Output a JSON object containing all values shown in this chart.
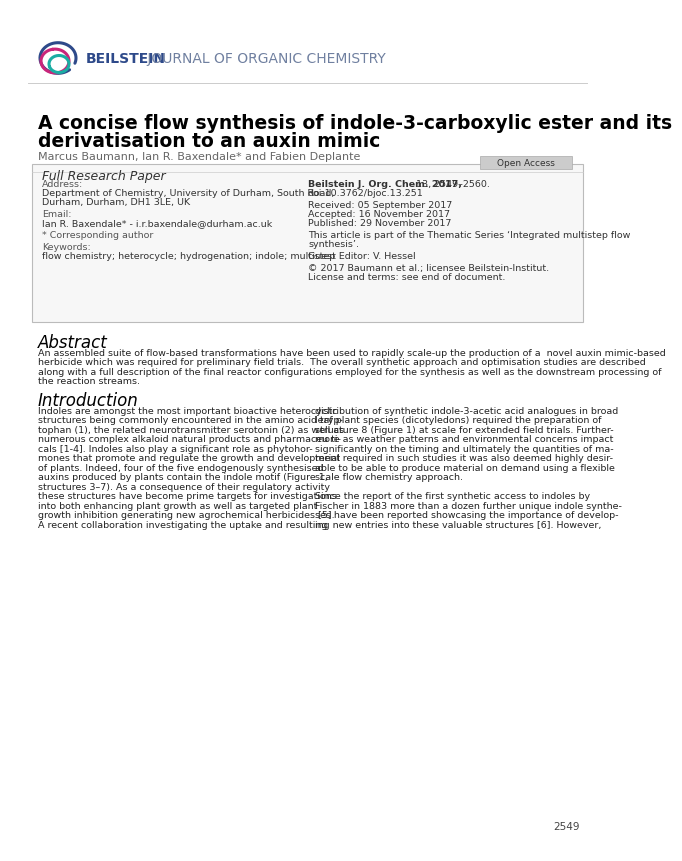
{
  "page_bg": "#ffffff",
  "logo_text_bold": "BEILSTEIN",
  "logo_text_rest": " JOURNAL OF ORGANIC CHEMISTRY",
  "title_line1": "A concise flow synthesis of indole-3-carboxylic ester and its",
  "title_line2": "derivatisation to an auxin mimic",
  "authors": "Marcus Baumann, Ian R. Baxendale* and Fabien Deplante",
  "box_label": "Full Research Paper",
  "open_access": "Open Access",
  "address_label": "Address:",
  "address_line1": "Department of Chemistry, University of Durham, South Road,",
  "address_line2": "Durham, Durham, DH1 3LE, UK",
  "email_label": "Email:",
  "email_line": "Ian R. Baxendale* - i.r.baxendale@durham.ac.uk",
  "corr_author": "* Corresponding author",
  "keywords_label": "Keywords:",
  "keywords_line": "flow chemistry; heterocycle; hydrogenation; indole; multistep",
  "journal_ref_bold": "Beilstein J. Org. Chem. 2017,",
  "journal_ref_rest": " 13, 2549–2560.",
  "doi": "doi:10.3762/bjoc.13.251",
  "received": "Received: 05 September 2017",
  "accepted": "Accepted: 16 November 2017",
  "published": "Published: 29 November 2017",
  "thematic": "This article is part of the Thematic Series ‘Integrated multistep flow",
  "thematic2": "synthesis’.",
  "guest_editor": "Guest Editor: V. Hessel",
  "copyright": "© 2017 Baumann et al.; licensee Beilstein-Institut.",
  "license": "License and terms: see end of document.",
  "abstract_title": "Abstract",
  "abstract_lines": [
    "An assembled suite of flow-based transformations have been used to rapidly scale-up the production of a  novel auxin mimic-based",
    "herbicide which was required for preliminary field trials.  The overall synthetic approach and optimisation studies are described",
    "along with a full description of the final reactor configurations employed for the synthesis as well as the downstream processing of",
    "the reaction streams."
  ],
  "intro_title": "Introduction",
  "intro_col1_lines": [
    "Indoles are amongst the most important bioactive heterocyclic",
    "structures being commonly encountered in the amino acid tryp-",
    "tophan (1), the related neurotransmitter serotonin (2) as well as",
    "numerous complex alkaloid natural products and pharmaceu ti-",
    "cals [1-4]. Indoles also play a significant role as phytohor-",
    "mones that promote and regulate the growth and development",
    "of plants. Indeed, four of the five endogenously synthesised",
    "auxins produced by plants contain the indole motif (Figure 1,",
    "structures 3–7). As a consequence of their regulatory activity",
    "these structures have become prime targets for investigations",
    "into both enhancing plant growth as well as targeted plant",
    "growth inhibition generating new agrochemical herbicides [5].",
    "A recent collaboration investigating the uptake and resulting"
  ],
  "intro_col2_lines": [
    "distribution of synthetic indole-3-acetic acid analogues in broad",
    "leaf plant species (dicotyledons) required the preparation of",
    "structure 8 (Figure 1) at scale for extended field trials. Further-",
    "more as weather patterns and environmental concerns impact",
    "significantly on the timing and ultimately the quantities of ma-",
    "terial required in such studies it was also deemed highly desir-",
    "able to be able to produce material on demand using a flexible",
    "scale flow chemistry approach.",
    "",
    "Since the report of the first synthetic access to indoles by",
    "Fischer in 1883 more than a dozen further unique indole synthe-",
    "ses have been reported showcasing the importance of develop-",
    "ing new entries into these valuable structures [6]. However,"
  ],
  "page_number": "2549",
  "logo_blue": "#2e4a8a",
  "logo_pink": "#c9257a",
  "logo_teal": "#1aada3",
  "journal_text_color": "#7080a0",
  "title_color": "#000000",
  "box_border_color": "#bbbbbb",
  "box_bg": "#f7f7f7"
}
